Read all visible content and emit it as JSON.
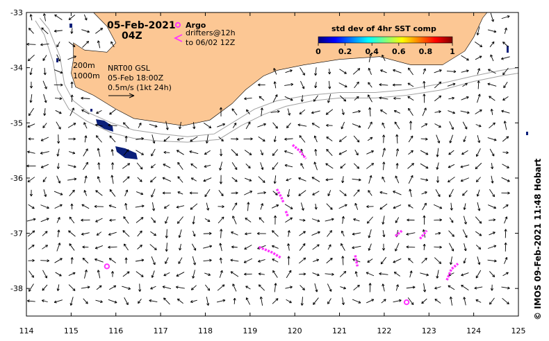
{
  "title": {
    "date": "05-Feb-2021",
    "time": "04Z"
  },
  "argo": {
    "label": "Argo",
    "color": "#ff33ff"
  },
  "drifters": {
    "line1": "drifters@12h",
    "line2": "to 06/02 12Z",
    "color": "#ff33ff"
  },
  "isobaths": {
    "label_200": "200m",
    "label_1000": "1000m"
  },
  "currents": {
    "line1": "NRT00 GSL",
    "line2": "05-Feb 18:00Z",
    "scale_label": "0.5m/s (1kt 24h)"
  },
  "colorbar": {
    "title": "std dev of 4hr SST comp",
    "ticks": [
      "0",
      "0.2",
      "0.4",
      "0.6",
      "0.8",
      "1"
    ],
    "colors": [
      "#00007f",
      "#0000ff",
      "#007fff",
      "#00ffff",
      "#7fff7f",
      "#ffff00",
      "#ff7f00",
      "#ff0000",
      "#7f0000"
    ]
  },
  "colors": {
    "land": "#fcc794",
    "sst_patch": "#0a1f7a",
    "isobath": "#a0a0a0"
  },
  "credit": "© IMOS 09-Feb-2021 11:48 Hobart",
  "chart_data": {
    "type": "map",
    "xlim": [
      114,
      125
    ],
    "ylim": [
      -38.5,
      -33
    ],
    "x_ticks": [
      "114",
      "115",
      "116",
      "117",
      "118",
      "119",
      "120",
      "121",
      "122",
      "123",
      "124",
      "125"
    ],
    "y_ticks": [
      "-33",
      "-34",
      "-35",
      "-36",
      "-37",
      "-38"
    ],
    "argo_floats": [
      {
        "lon": 115.8,
        "lat": -37.6
      },
      {
        "lon": 122.5,
        "lat": -38.25
      }
    ],
    "drifter_tracks": [
      [
        [
          119.95,
          -35.4
        ],
        [
          120.1,
          -35.5
        ],
        [
          120.25,
          -35.65
        ]
      ],
      [
        [
          119.6,
          -36.2
        ],
        [
          119.7,
          -36.35
        ],
        [
          119.75,
          -36.45
        ]
      ],
      [
        [
          119.8,
          -36.6
        ],
        [
          119.85,
          -36.7
        ]
      ],
      [
        [
          119.2,
          -37.25
        ],
        [
          119.5,
          -37.35
        ],
        [
          119.7,
          -37.45
        ]
      ],
      [
        [
          121.35,
          -37.4
        ],
        [
          121.4,
          -37.6
        ]
      ],
      [
        [
          122.25,
          -37.05
        ],
        [
          122.4,
          -36.95
        ]
      ],
      [
        [
          122.8,
          -37.1
        ],
        [
          122.95,
          -36.95
        ]
      ],
      [
        [
          123.4,
          -37.85
        ],
        [
          123.5,
          -37.65
        ],
        [
          123.65,
          -37.55
        ]
      ]
    ]
  }
}
